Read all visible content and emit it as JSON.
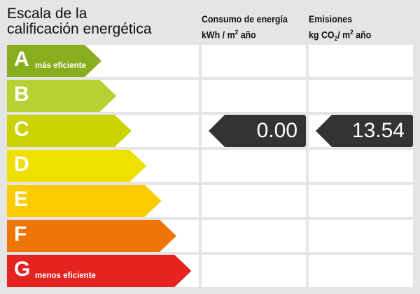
{
  "title": [
    "Escala de la",
    "calificación energética"
  ],
  "columns": {
    "energy": {
      "title": "Consumo de energía",
      "unit_pre": "kWh / m",
      "unit_sup": "2",
      "unit_post": " año"
    },
    "emissions": {
      "title": "Emisiones",
      "unit_pre": "kg CO",
      "unit_sub": "2",
      "unit_mid": "/ m",
      "unit_sup": "2",
      "unit_post": " año"
    }
  },
  "ratings": [
    {
      "letter": "A",
      "note": "más eficiente",
      "color": "#88ae1e"
    },
    {
      "letter": "B",
      "note": "",
      "color": "#b8d032"
    },
    {
      "letter": "C",
      "note": "",
      "color": "#cbd300"
    },
    {
      "letter": "D",
      "note": "",
      "color": "#f0e000"
    },
    {
      "letter": "E",
      "note": "",
      "color": "#fccb00"
    },
    {
      "letter": "F",
      "note": "",
      "color": "#ee7506"
    },
    {
      "letter": "G",
      "note": "menos eficiente",
      "color": "#e52421"
    }
  ],
  "energy_value": {
    "rating": "C",
    "value": "0.00"
  },
  "emissions_value": {
    "rating": "C",
    "value": "13.54"
  },
  "indicator_color": "#333333"
}
